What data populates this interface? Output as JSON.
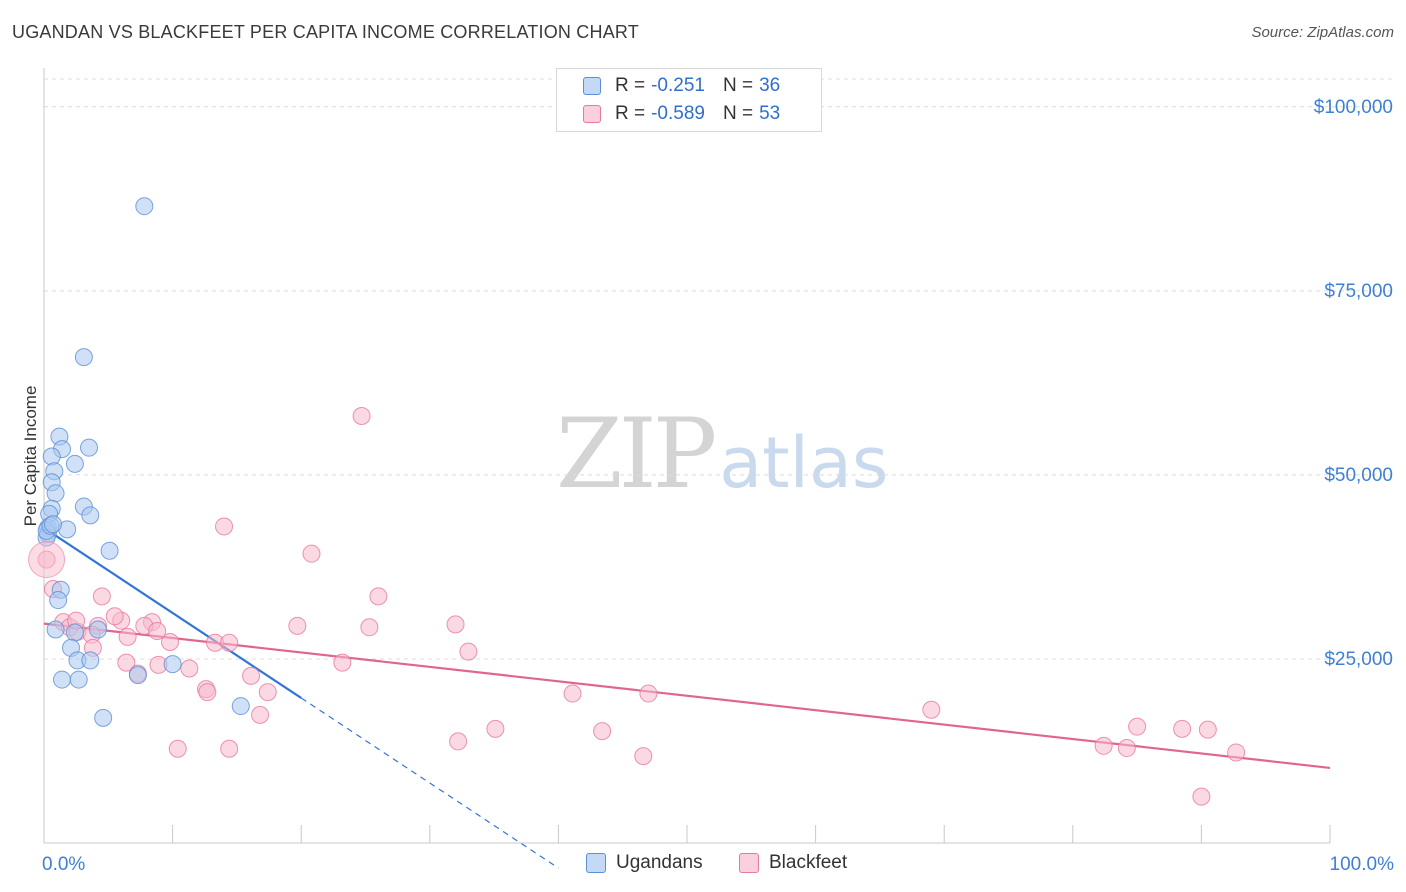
{
  "header": {
    "title": "UGANDAN VS BLACKFEET PER CAPITA INCOME CORRELATION CHART",
    "source": "Source: ZipAtlas.com"
  },
  "watermark": {
    "zip": "ZIP",
    "atlas": "atlas"
  },
  "legend": {
    "rows": [
      {
        "r_label": "R =",
        "r_value": "-0.251",
        "n_label": "N =",
        "n_value": "36"
      },
      {
        "r_label": "R =",
        "r_value": "-0.589",
        "n_label": "N =",
        "n_value": "53"
      }
    ]
  },
  "bottom_legend": {
    "ugandans": "Ugandans",
    "blackfeet": "Blackfeet"
  },
  "colors": {
    "ugandans_fill": "#aac8f0",
    "ugandans_stroke": "#5b8fd6",
    "ugandans_line": "#3375d6",
    "blackfeet_fill": "#f7b9cc",
    "blackfeet_stroke": "#e8789e",
    "blackfeet_line": "#e06590",
    "tick_label": "#3f7fd4",
    "grid": "#dcdcdc",
    "axis": "#c8c8c8"
  },
  "chart_data": {
    "type": "scatter",
    "title": "UGANDAN VS BLACKFEET PER CAPITA INCOME CORRELATION CHART",
    "xlabel": "",
    "ylabel": "Per Capita Income",
    "xlim": [
      0,
      100
    ],
    "ylim": [
      0,
      105000
    ],
    "x_tick_labels": [
      "0.0%",
      "100.0%"
    ],
    "y_ticks": [
      25000,
      50000,
      75000,
      100000
    ],
    "y_tick_labels": [
      "$25,000",
      "$50,000",
      "$75,000",
      "$100,000"
    ],
    "grid": true,
    "legend_placement": "top-center",
    "series": [
      {
        "name": "Ugandans",
        "r": -0.251,
        "n": 36,
        "points": [
          [
            7.8,
            86500
          ],
          [
            3.1,
            66000
          ],
          [
            1.2,
            55200
          ],
          [
            3.5,
            53700
          ],
          [
            1.4,
            53500
          ],
          [
            0.6,
            52500
          ],
          [
            2.4,
            51500
          ],
          [
            0.8,
            50500
          ],
          [
            0.6,
            49000
          ],
          [
            0.9,
            47500
          ],
          [
            3.1,
            45700
          ],
          [
            0.6,
            45400
          ],
          [
            0.4,
            44700
          ],
          [
            3.6,
            44500
          ],
          [
            0.3,
            42800
          ],
          [
            1.8,
            42600
          ],
          [
            0.3,
            42000
          ],
          [
            0.2,
            41500
          ],
          [
            5.1,
            39700
          ],
          [
            1.3,
            34400
          ],
          [
            1.1,
            33000
          ],
          [
            0.9,
            29000
          ],
          [
            4.2,
            29000
          ],
          [
            2.4,
            28600
          ],
          [
            2.1,
            26500
          ],
          [
            2.6,
            24800
          ],
          [
            3.6,
            24800
          ],
          [
            10.0,
            24300
          ],
          [
            7.3,
            22800
          ],
          [
            1.4,
            22200
          ],
          [
            2.7,
            22200
          ],
          [
            15.3,
            18600
          ],
          [
            4.6,
            17000
          ],
          [
            0.2,
            42400
          ],
          [
            0.5,
            43100
          ],
          [
            0.7,
            43300
          ]
        ],
        "trend": {
          "x": [
            0,
            20
          ],
          "y": [
            42800,
            19700
          ]
        },
        "trend_dashed": {
          "x": [
            20,
            40
          ],
          "y": [
            19700,
            -3400
          ]
        }
      },
      {
        "name": "Blackfeet",
        "r": -0.589,
        "n": 53,
        "points": [
          [
            0.2,
            38500
          ],
          [
            0.7,
            34500
          ],
          [
            24.7,
            58000
          ],
          [
            14.0,
            43000
          ],
          [
            20.8,
            39300
          ],
          [
            4.5,
            33500
          ],
          [
            26.0,
            33500
          ],
          [
            1.5,
            30000
          ],
          [
            6.0,
            30200
          ],
          [
            8.4,
            30000
          ],
          [
            2.0,
            29300
          ],
          [
            4.2,
            29500
          ],
          [
            7.8,
            29500
          ],
          [
            8.8,
            28800
          ],
          [
            19.7,
            29500
          ],
          [
            25.3,
            29300
          ],
          [
            32.0,
            29700
          ],
          [
            2.6,
            28700
          ],
          [
            3.7,
            28300
          ],
          [
            6.5,
            28000
          ],
          [
            9.8,
            27300
          ],
          [
            13.3,
            27200
          ],
          [
            14.4,
            27200
          ],
          [
            3.8,
            26500
          ],
          [
            33.0,
            26000
          ],
          [
            23.2,
            24500
          ],
          [
            6.4,
            24500
          ],
          [
            8.9,
            24200
          ],
          [
            11.3,
            23700
          ],
          [
            7.3,
            23000
          ],
          [
            16.1,
            22700
          ],
          [
            12.6,
            20900
          ],
          [
            12.7,
            20500
          ],
          [
            17.4,
            20500
          ],
          [
            41.1,
            20300
          ],
          [
            47.0,
            20300
          ],
          [
            16.8,
            17400
          ],
          [
            69.0,
            18100
          ],
          [
            35.1,
            15500
          ],
          [
            85.0,
            15800
          ],
          [
            43.4,
            15200
          ],
          [
            88.5,
            15500
          ],
          [
            90.5,
            15400
          ],
          [
            32.2,
            13800
          ],
          [
            10.4,
            12800
          ],
          [
            14.4,
            12800
          ],
          [
            82.4,
            13200
          ],
          [
            84.2,
            12900
          ],
          [
            46.6,
            11800
          ],
          [
            92.7,
            12300
          ],
          [
            90.0,
            6300
          ],
          [
            2.5,
            30200
          ],
          [
            5.5,
            30800
          ]
        ],
        "trend": {
          "x": [
            0,
            100
          ],
          "y": [
            29800,
            10200
          ]
        }
      }
    ]
  }
}
